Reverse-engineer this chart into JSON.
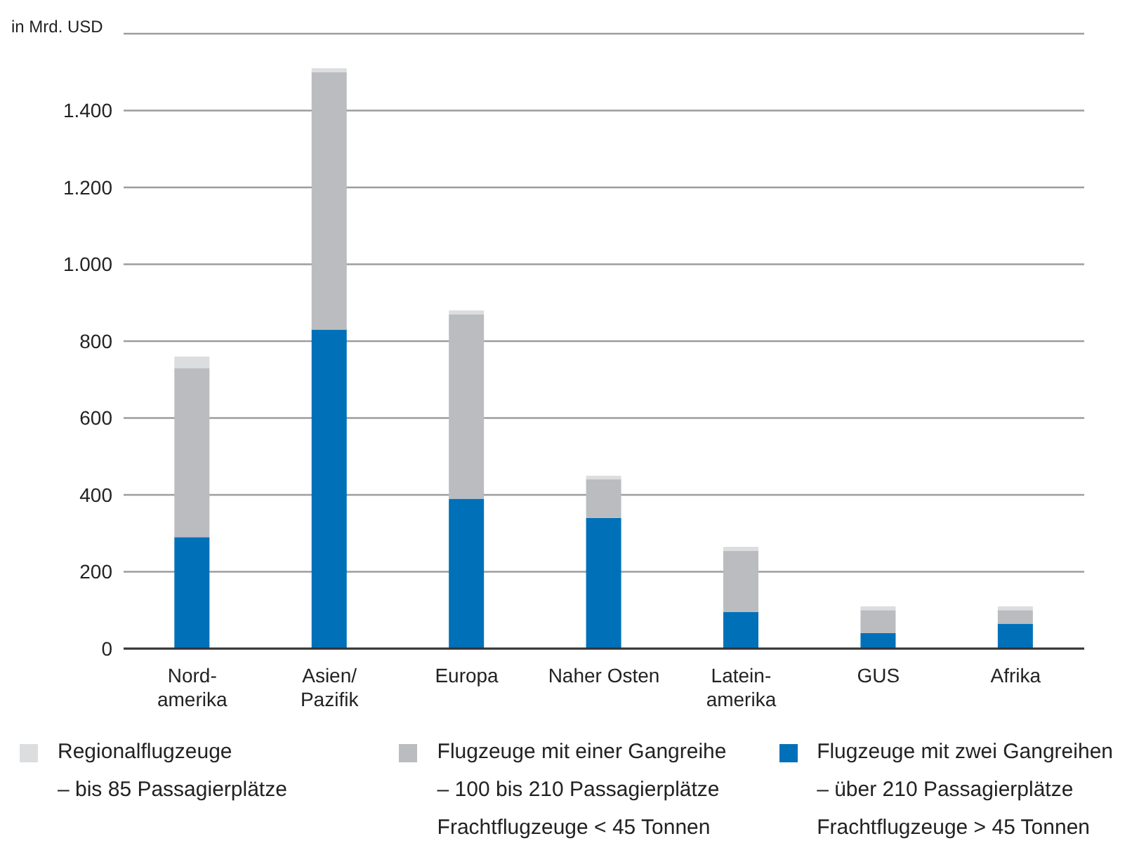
{
  "chart_data": {
    "type": "bar",
    "ylabel": "in Mrd. USD",
    "categories": [
      "Nord-\namerika",
      "Asien/\nPazifik",
      "Europa",
      "Naher Osten",
      "Latein-\namerika",
      "GUS",
      "Afrika"
    ],
    "stacked": true,
    "series": [
      {
        "name": "Flugzeuge mit zwei Gangreihen\n– über 210 Passagierplätze\nFrachtflugzeuge > 45 Tonnen",
        "color": "#0070b9",
        "values": [
          290,
          830,
          390,
          340,
          95,
          40,
          65
        ]
      },
      {
        "name": "Flugzeuge mit einer Gangreihe\n– 100 bis 210 Passagierplätze\nFrachtflugzeuge < 45 Tonnen",
        "color": "#bbbcc0",
        "values": [
          440,
          670,
          480,
          100,
          160,
          60,
          35
        ]
      },
      {
        "name": "Regionalflugzeuge\n– bis 85 Passagierplätze",
        "color": "#dcdddf",
        "values": [
          30,
          10,
          10,
          10,
          10,
          10,
          10
        ]
      }
    ],
    "ylim": [
      0,
      1600
    ],
    "yticks": [
      0,
      200,
      400,
      600,
      800,
      {
        "value": 1000,
        "label": "1.000"
      },
      {
        "value": 1200,
        "label": "1.200"
      },
      {
        "value": 1400,
        "label": "1.400"
      },
      {
        "value": 1600,
        "label": null
      }
    ],
    "grid": "y",
    "legend": "bottom"
  }
}
